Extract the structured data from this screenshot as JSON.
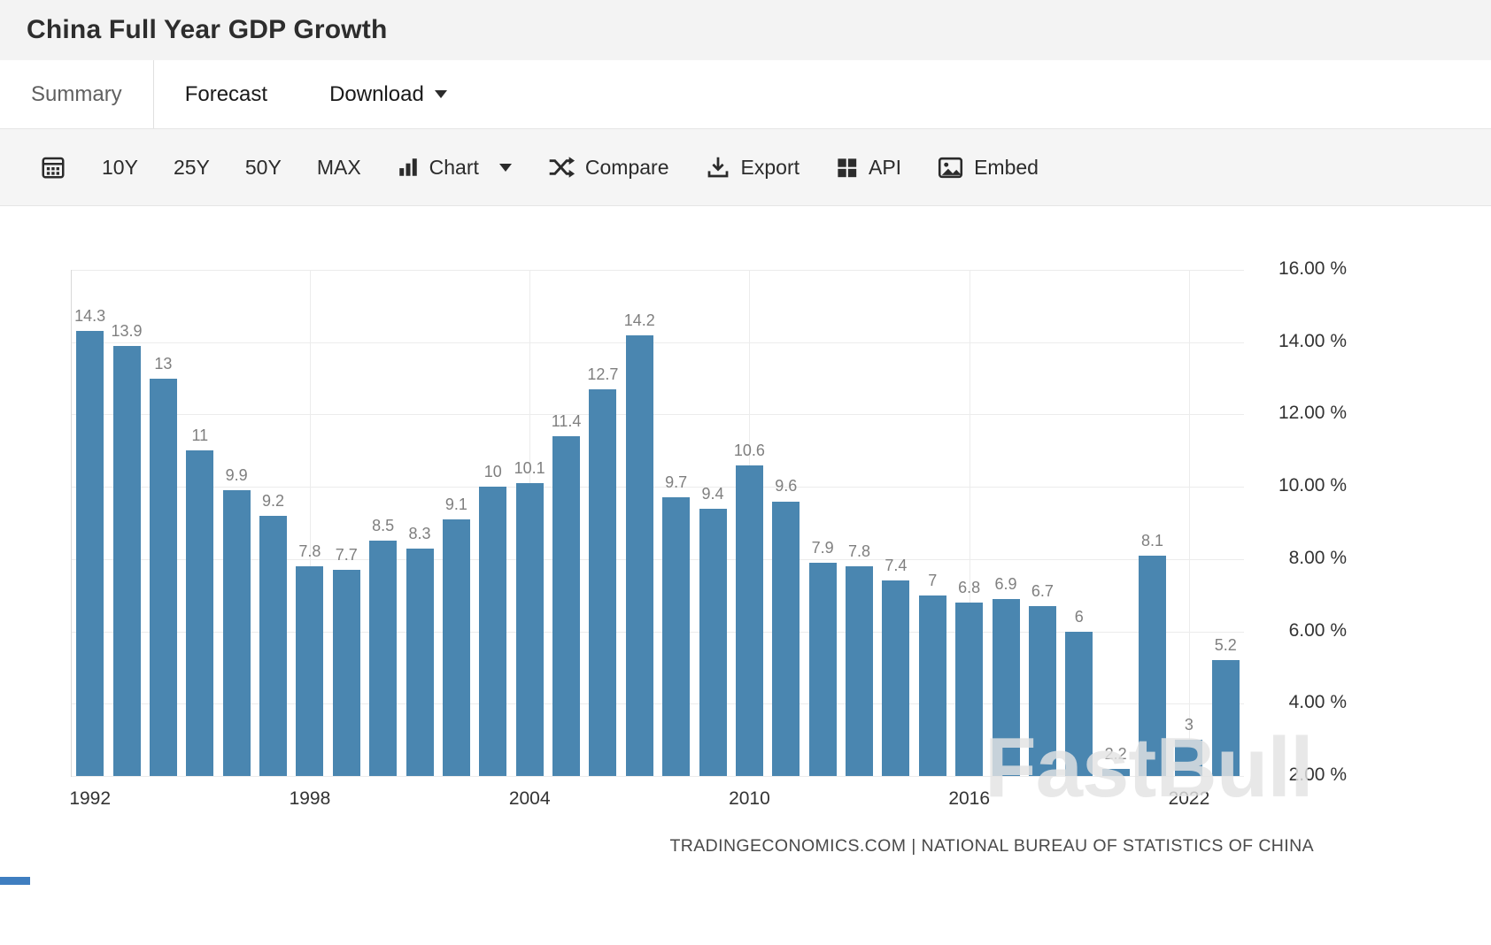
{
  "header": {
    "title": "China Full Year GDP Growth"
  },
  "tabs": {
    "summary": "Summary",
    "forecast": "Forecast",
    "download": "Download"
  },
  "toolbar": {
    "range_10y": "10Y",
    "range_25y": "25Y",
    "range_50y": "50Y",
    "range_max": "MAX",
    "chart": "Chart",
    "compare": "Compare",
    "export": "Export",
    "api": "API",
    "embed": "Embed"
  },
  "chart_data": {
    "type": "bar",
    "title": "China Full Year GDP Growth",
    "x": [
      1992,
      1993,
      1994,
      1995,
      1996,
      1997,
      1998,
      1999,
      2000,
      2001,
      2002,
      2003,
      2004,
      2005,
      2006,
      2007,
      2008,
      2009,
      2010,
      2011,
      2012,
      2013,
      2014,
      2015,
      2016,
      2017,
      2018,
      2019,
      2020,
      2021,
      2022,
      2023
    ],
    "values": [
      14.3,
      13.9,
      13,
      11,
      9.9,
      9.2,
      7.8,
      7.7,
      8.5,
      8.3,
      9.1,
      10,
      10.1,
      11.4,
      12.7,
      14.2,
      9.7,
      9.4,
      10.6,
      9.6,
      7.9,
      7.8,
      7.4,
      7,
      6.8,
      6.9,
      6.7,
      6,
      2.2,
      8.1,
      3,
      5.2
    ],
    "xlabel": "",
    "ylabel": "",
    "ylim": [
      2,
      16
    ],
    "grid": true,
    "legend": false,
    "bar_color": "#4a86b0",
    "y_ticks": [
      {
        "value": 16,
        "label": "16.00 %"
      },
      {
        "value": 14,
        "label": "14.00 %"
      },
      {
        "value": 12,
        "label": "12.00 %"
      },
      {
        "value": 10,
        "label": "10.00 %"
      },
      {
        "value": 8,
        "label": "8.00 %"
      },
      {
        "value": 6,
        "label": "6.00 %"
      },
      {
        "value": 4,
        "label": "4.00 %"
      },
      {
        "value": 2,
        "label": "2.00 %"
      }
    ],
    "x_ticks": [
      {
        "index": 0,
        "label": "1992"
      },
      {
        "index": 6,
        "label": "1998"
      },
      {
        "index": 12,
        "label": "2004"
      },
      {
        "index": 18,
        "label": "2010"
      },
      {
        "index": 24,
        "label": "2016"
      },
      {
        "index": 30,
        "label": "2022"
      }
    ]
  },
  "watermark": "FastBull",
  "attribution": "TRADINGECONOMICS.COM | NATIONAL BUREAU OF STATISTICS OF CHINA"
}
